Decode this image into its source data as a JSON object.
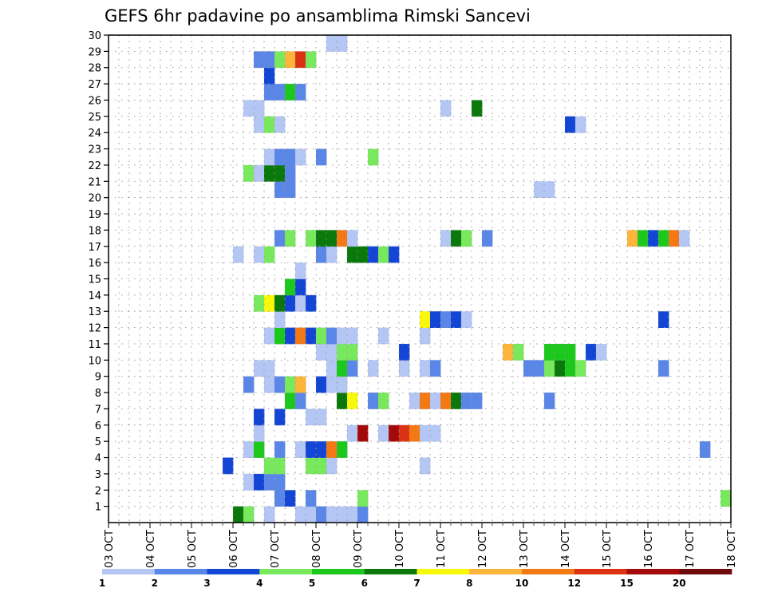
{
  "chart_data": {
    "type": "heatmap",
    "title": "GEFS 6hr padavine po ansamblima Rimski Sancevi",
    "xlabel": "",
    "ylabel": "",
    "x_tick_labels": [
      "03 OCT",
      "04 OCT",
      "05 OCT",
      "06 OCT",
      "07 OCT",
      "08 OCT",
      "09 OCT",
      "10 OCT",
      "11 OCT",
      "12 OCT",
      "13 OCT",
      "14 OCT",
      "15 OCT",
      "16 OCT",
      "17 OCT",
      "18 OCT"
    ],
    "xlim": [
      0,
      60
    ],
    "x_step_hours": 6,
    "y_tick_labels": [
      "1",
      "2",
      "3",
      "4",
      "5",
      "6",
      "7",
      "8",
      "9",
      "10",
      "11",
      "12",
      "13",
      "14",
      "15",
      "16",
      "17",
      "18",
      "19",
      "20",
      "21",
      "22",
      "23",
      "24",
      "25",
      "26",
      "27",
      "28",
      "29",
      "30"
    ],
    "ylim": [
      0,
      30
    ],
    "grid": true,
    "legend_placement": "bottom",
    "legend": {
      "labels": [
        "1",
        "2",
        "3",
        "4",
        "5",
        "6",
        "7",
        "8",
        "10",
        "12",
        "15",
        "20"
      ],
      "colors": [
        "#b4c6f4",
        "#5a86e8",
        "#1446d6",
        "#78e85c",
        "#1cc81c",
        "#0a780a",
        "#f8f80a",
        "#fcb43a",
        "#f47814",
        "#dc3214",
        "#a50a0a",
        "#6e0a0a"
      ]
    },
    "cells": [
      {
        "member": 0,
        "t": 12,
        "level": 6
      },
      {
        "member": 0,
        "t": 13,
        "level": 4
      },
      {
        "member": 0,
        "t": 15,
        "level": 1
      },
      {
        "member": 0,
        "t": 18,
        "level": 1
      },
      {
        "member": 0,
        "t": 19,
        "level": 1
      },
      {
        "member": 0,
        "t": 20,
        "level": 2
      },
      {
        "member": 0,
        "t": 21,
        "level": 1
      },
      {
        "member": 0,
        "t": 22,
        "level": 1
      },
      {
        "member": 0,
        "t": 23,
        "level": 1
      },
      {
        "member": 0,
        "t": 24,
        "level": 2
      },
      {
        "member": 1,
        "t": 16,
        "level": 2
      },
      {
        "member": 1,
        "t": 17,
        "level": 3
      },
      {
        "member": 1,
        "t": 19,
        "level": 2
      },
      {
        "member": 1,
        "t": 24,
        "level": 4
      },
      {
        "member": 1,
        "t": 59,
        "level": 4
      },
      {
        "member": 2,
        "t": 13,
        "level": 1
      },
      {
        "member": 2,
        "t": 14,
        "level": 3
      },
      {
        "member": 2,
        "t": 15,
        "level": 2
      },
      {
        "member": 2,
        "t": 16,
        "level": 2
      },
      {
        "member": 3,
        "t": 11,
        "level": 3
      },
      {
        "member": 3,
        "t": 15,
        "level": 4
      },
      {
        "member": 3,
        "t": 16,
        "level": 4
      },
      {
        "member": 3,
        "t": 19,
        "level": 4
      },
      {
        "member": 3,
        "t": 20,
        "level": 4
      },
      {
        "member": 3,
        "t": 21,
        "level": 1
      },
      {
        "member": 3,
        "t": 30,
        "level": 1
      },
      {
        "member": 4,
        "t": 13,
        "level": 1
      },
      {
        "member": 4,
        "t": 14,
        "level": 5
      },
      {
        "member": 4,
        "t": 16,
        "level": 2
      },
      {
        "member": 4,
        "t": 18,
        "level": 1
      },
      {
        "member": 4,
        "t": 19,
        "level": 3
      },
      {
        "member": 4,
        "t": 20,
        "level": 3
      },
      {
        "member": 4,
        "t": 21,
        "level": 9
      },
      {
        "member": 4,
        "t": 22,
        "level": 5
      },
      {
        "member": 4,
        "t": 57,
        "level": 2
      },
      {
        "member": 5,
        "t": 14,
        "level": 1
      },
      {
        "member": 5,
        "t": 23,
        "level": 1
      },
      {
        "member": 5,
        "t": 24,
        "level": 11
      },
      {
        "member": 5,
        "t": 26,
        "level": 1
      },
      {
        "member": 5,
        "t": 27,
        "level": 11
      },
      {
        "member": 5,
        "t": 28,
        "level": 10
      },
      {
        "member": 5,
        "t": 29,
        "level": 9
      },
      {
        "member": 5,
        "t": 30,
        "level": 1
      },
      {
        "member": 5,
        "t": 31,
        "level": 1
      },
      {
        "member": 6,
        "t": 14,
        "level": 3
      },
      {
        "member": 6,
        "t": 16,
        "level": 3
      },
      {
        "member": 6,
        "t": 19,
        "level": 1
      },
      {
        "member": 6,
        "t": 20,
        "level": 1
      },
      {
        "member": 7,
        "t": 17,
        "level": 5
      },
      {
        "member": 7,
        "t": 18,
        "level": 2
      },
      {
        "member": 7,
        "t": 22,
        "level": 6
      },
      {
        "member": 7,
        "t": 23,
        "level": 7
      },
      {
        "member": 7,
        "t": 25,
        "level": 2
      },
      {
        "member": 7,
        "t": 26,
        "level": 4
      },
      {
        "member": 7,
        "t": 29,
        "level": 1
      },
      {
        "member": 7,
        "t": 30,
        "level": 9
      },
      {
        "member": 7,
        "t": 31,
        "level": 1
      },
      {
        "member": 7,
        "t": 32,
        "level": 9
      },
      {
        "member": 7,
        "t": 33,
        "level": 6
      },
      {
        "member": 7,
        "t": 34,
        "level": 2
      },
      {
        "member": 7,
        "t": 35,
        "level": 2
      },
      {
        "member": 7,
        "t": 42,
        "level": 2
      },
      {
        "member": 8,
        "t": 13,
        "level": 2
      },
      {
        "member": 8,
        "t": 15,
        "level": 1
      },
      {
        "member": 8,
        "t": 16,
        "level": 2
      },
      {
        "member": 8,
        "t": 17,
        "level": 4
      },
      {
        "member": 8,
        "t": 18,
        "level": 8
      },
      {
        "member": 8,
        "t": 20,
        "level": 3
      },
      {
        "member": 8,
        "t": 21,
        "level": 1
      },
      {
        "member": 8,
        "t": 22,
        "level": 1
      },
      {
        "member": 9,
        "t": 14,
        "level": 1
      },
      {
        "member": 9,
        "t": 15,
        "level": 1
      },
      {
        "member": 9,
        "t": 21,
        "level": 1
      },
      {
        "member": 9,
        "t": 22,
        "level": 5
      },
      {
        "member": 9,
        "t": 23,
        "level": 2
      },
      {
        "member": 9,
        "t": 25,
        "level": 1
      },
      {
        "member": 9,
        "t": 28,
        "level": 1
      },
      {
        "member": 9,
        "t": 30,
        "level": 1
      },
      {
        "member": 9,
        "t": 31,
        "level": 2
      },
      {
        "member": 9,
        "t": 40,
        "level": 2
      },
      {
        "member": 9,
        "t": 41,
        "level": 2
      },
      {
        "member": 9,
        "t": 42,
        "level": 4
      },
      {
        "member": 9,
        "t": 43,
        "level": 6
      },
      {
        "member": 9,
        "t": 44,
        "level": 5
      },
      {
        "member": 9,
        "t": 45,
        "level": 4
      },
      {
        "member": 9,
        "t": 53,
        "level": 2
      },
      {
        "member": 10,
        "t": 20,
        "level": 1
      },
      {
        "member": 10,
        "t": 21,
        "level": 1
      },
      {
        "member": 10,
        "t": 22,
        "level": 4
      },
      {
        "member": 10,
        "t": 23,
        "level": 4
      },
      {
        "member": 10,
        "t": 28,
        "level": 3
      },
      {
        "member": 10,
        "t": 38,
        "level": 8
      },
      {
        "member": 10,
        "t": 39,
        "level": 4
      },
      {
        "member": 10,
        "t": 42,
        "level": 5
      },
      {
        "member": 10,
        "t": 43,
        "level": 5
      },
      {
        "member": 10,
        "t": 44,
        "level": 5
      },
      {
        "member": 10,
        "t": 46,
        "level": 3
      },
      {
        "member": 10,
        "t": 47,
        "level": 1
      },
      {
        "member": 11,
        "t": 15,
        "level": 1
      },
      {
        "member": 11,
        "t": 16,
        "level": 5
      },
      {
        "member": 11,
        "t": 17,
        "level": 3
      },
      {
        "member": 11,
        "t": 18,
        "level": 9
      },
      {
        "member": 11,
        "t": 19,
        "level": 3
      },
      {
        "member": 11,
        "t": 20,
        "level": 4
      },
      {
        "member": 11,
        "t": 21,
        "level": 2
      },
      {
        "member": 11,
        "t": 22,
        "level": 1
      },
      {
        "member": 11,
        "t": 23,
        "level": 1
      },
      {
        "member": 11,
        "t": 26,
        "level": 1
      },
      {
        "member": 11,
        "t": 30,
        "level": 1
      },
      {
        "member": 12,
        "t": 16,
        "level": 1
      },
      {
        "member": 12,
        "t": 30,
        "level": 7
      },
      {
        "member": 12,
        "t": 31,
        "level": 3
      },
      {
        "member": 12,
        "t": 32,
        "level": 2
      },
      {
        "member": 12,
        "t": 33,
        "level": 3
      },
      {
        "member": 12,
        "t": 34,
        "level": 1
      },
      {
        "member": 12,
        "t": 53,
        "level": 3
      },
      {
        "member": 13,
        "t": 14,
        "level": 4
      },
      {
        "member": 13,
        "t": 15,
        "level": 7
      },
      {
        "member": 13,
        "t": 16,
        "level": 6
      },
      {
        "member": 13,
        "t": 17,
        "level": 3
      },
      {
        "member": 13,
        "t": 18,
        "level": 1
      },
      {
        "member": 13,
        "t": 19,
        "level": 3
      },
      {
        "member": 14,
        "t": 17,
        "level": 5
      },
      {
        "member": 14,
        "t": 18,
        "level": 3
      },
      {
        "member": 15,
        "t": 18,
        "level": 1
      },
      {
        "member": 16,
        "t": 12,
        "level": 1
      },
      {
        "member": 16,
        "t": 14,
        "level": 1
      },
      {
        "member": 16,
        "t": 15,
        "level": 4
      },
      {
        "member": 16,
        "t": 20,
        "level": 2
      },
      {
        "member": 16,
        "t": 21,
        "level": 1
      },
      {
        "member": 16,
        "t": 23,
        "level": 6
      },
      {
        "member": 16,
        "t": 24,
        "level": 6
      },
      {
        "member": 16,
        "t": 25,
        "level": 3
      },
      {
        "member": 16,
        "t": 26,
        "level": 4
      },
      {
        "member": 16,
        "t": 27,
        "level": 3
      },
      {
        "member": 17,
        "t": 16,
        "level": 2
      },
      {
        "member": 17,
        "t": 17,
        "level": 4
      },
      {
        "member": 17,
        "t": 19,
        "level": 4
      },
      {
        "member": 17,
        "t": 20,
        "level": 6
      },
      {
        "member": 17,
        "t": 21,
        "level": 6
      },
      {
        "member": 17,
        "t": 22,
        "level": 9
      },
      {
        "member": 17,
        "t": 23,
        "level": 1
      },
      {
        "member": 17,
        "t": 32,
        "level": 1
      },
      {
        "member": 17,
        "t": 33,
        "level": 6
      },
      {
        "member": 17,
        "t": 34,
        "level": 4
      },
      {
        "member": 17,
        "t": 36,
        "level": 2
      },
      {
        "member": 17,
        "t": 50,
        "level": 8
      },
      {
        "member": 17,
        "t": 51,
        "level": 5
      },
      {
        "member": 17,
        "t": 52,
        "level": 3
      },
      {
        "member": 17,
        "t": 53,
        "level": 5
      },
      {
        "member": 17,
        "t": 54,
        "level": 9
      },
      {
        "member": 17,
        "t": 55,
        "level": 1
      },
      {
        "member": 20,
        "t": 16,
        "level": 2
      },
      {
        "member": 20,
        "t": 17,
        "level": 2
      },
      {
        "member": 20,
        "t": 41,
        "level": 1
      },
      {
        "member": 20,
        "t": 42,
        "level": 1
      },
      {
        "member": 21,
        "t": 13,
        "level": 4
      },
      {
        "member": 21,
        "t": 14,
        "level": 1
      },
      {
        "member": 21,
        "t": 15,
        "level": 6
      },
      {
        "member": 21,
        "t": 16,
        "level": 6
      },
      {
        "member": 21,
        "t": 17,
        "level": 2
      },
      {
        "member": 22,
        "t": 15,
        "level": 1
      },
      {
        "member": 22,
        "t": 16,
        "level": 2
      },
      {
        "member": 22,
        "t": 17,
        "level": 2
      },
      {
        "member": 22,
        "t": 18,
        "level": 1
      },
      {
        "member": 22,
        "t": 20,
        "level": 2
      },
      {
        "member": 22,
        "t": 25,
        "level": 4
      },
      {
        "member": 24,
        "t": 14,
        "level": 1
      },
      {
        "member": 24,
        "t": 15,
        "level": 4
      },
      {
        "member": 24,
        "t": 16,
        "level": 1
      },
      {
        "member": 24,
        "t": 44,
        "level": 3
      },
      {
        "member": 24,
        "t": 45,
        "level": 1
      },
      {
        "member": 25,
        "t": 13,
        "level": 1
      },
      {
        "member": 25,
        "t": 14,
        "level": 1
      },
      {
        "member": 25,
        "t": 32,
        "level": 1
      },
      {
        "member": 25,
        "t": 35,
        "level": 6
      },
      {
        "member": 26,
        "t": 15,
        "level": 2
      },
      {
        "member": 26,
        "t": 16,
        "level": 2
      },
      {
        "member": 26,
        "t": 17,
        "level": 5
      },
      {
        "member": 26,
        "t": 18,
        "level": 2
      },
      {
        "member": 27,
        "t": 15,
        "level": 3
      },
      {
        "member": 28,
        "t": 14,
        "level": 2
      },
      {
        "member": 28,
        "t": 15,
        "level": 2
      },
      {
        "member": 28,
        "t": 16,
        "level": 4
      },
      {
        "member": 28,
        "t": 17,
        "level": 8
      },
      {
        "member": 28,
        "t": 18,
        "level": 10
      },
      {
        "member": 28,
        "t": 19,
        "level": 4
      },
      {
        "member": 29,
        "t": 21,
        "level": 1
      },
      {
        "member": 29,
        "t": 22,
        "level": 1
      }
    ]
  }
}
